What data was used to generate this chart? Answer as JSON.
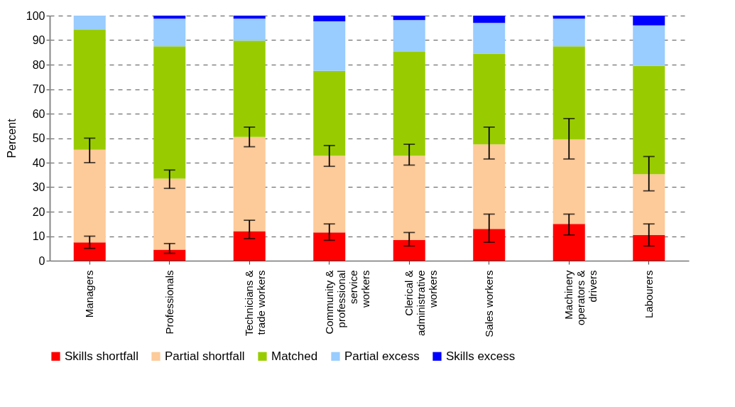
{
  "chart_data": {
    "type": "bar",
    "stacked": true,
    "ylabel": "Percent",
    "categories": [
      "Managers",
      "Professionals",
      "Technicians & trade workers",
      "Community & professional service workers",
      "Clerical & administrative workers",
      "Sales workers",
      "Machinery operators & drivers",
      "Labourers"
    ],
    "series": [
      {
        "name": "Skills shortfall",
        "color": "#ff0000",
        "values": [
          7.5,
          4.5,
          12,
          11.5,
          8.5,
          13,
          15,
          10.5
        ],
        "errors": [
          [
            5,
            10
          ],
          [
            3,
            7
          ],
          [
            9,
            16.5
          ],
          [
            8.3,
            15
          ],
          [
            6,
            11.5
          ],
          [
            7.5,
            19
          ],
          [
            10.5,
            19
          ],
          [
            6,
            15
          ]
        ]
      },
      {
        "name": "Partial shortfall",
        "color": "#fdca99",
        "values": [
          37.8,
          29,
          38.5,
          31.3,
          34.3,
          34.5,
          34.5,
          24.8
        ],
        "errors": [
          [
            40,
            50
          ],
          [
            29.5,
            37
          ],
          [
            46.5,
            54.5
          ],
          [
            38.5,
            47
          ],
          [
            39,
            47.5
          ],
          [
            41.5,
            54.5
          ],
          [
            41.5,
            58
          ],
          [
            28.5,
            42.5
          ]
        ]
      },
      {
        "name": "Matched",
        "color": "#99cc00",
        "values": [
          48.9,
          54,
          39.3,
          34.7,
          42.4,
          37,
          38,
          44.2
        ]
      },
      {
        "name": "Partial excess",
        "color": "#99ccff",
        "values": [
          5.8,
          11.3,
          9,
          20.2,
          13,
          12.5,
          11.3,
          16.5
        ]
      },
      {
        "name": "Skills excess",
        "color": "#0000ff",
        "values": [
          0,
          1.2,
          1.2,
          2.3,
          1.8,
          3,
          1.2,
          4
        ]
      }
    ],
    "ylim": [
      0,
      100
    ],
    "yticks": [
      0,
      10,
      20,
      30,
      40,
      50,
      60,
      70,
      80,
      90,
      100
    ],
    "grid": "y",
    "legend": "bottom"
  }
}
